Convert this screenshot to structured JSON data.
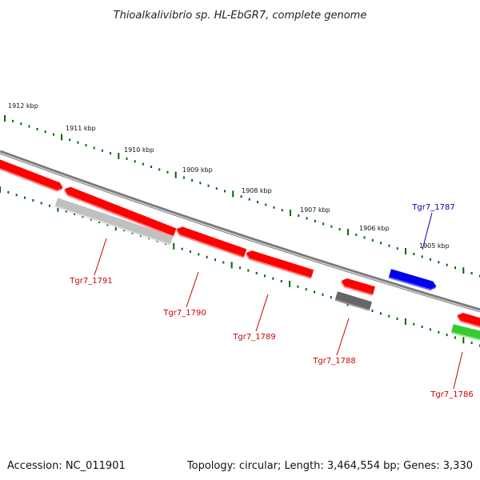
{
  "title": "Thioalkalivibrio sp. HL-EbGR7, complete genome",
  "footer": {
    "accession": "Accession: NC_011901",
    "summary": "Topology: circular; Length: 3,464,554 bp; Genes: 3,330"
  },
  "scale_labels": [
    "1912 kbp",
    "1911 kbp",
    "1910 kbp",
    "1909 kbp",
    "1908 kbp",
    "1907 kbp",
    "1906 kbp",
    "1905 kbp"
  ],
  "genes": [
    {
      "name": "Tgr7_1791",
      "color": "#cc0000"
    },
    {
      "name": "Tgr7_1790",
      "color": "#cc0000"
    },
    {
      "name": "Tgr7_1789",
      "color": "#cc0000"
    },
    {
      "name": "Tgr7_1788",
      "color": "#cc0000"
    },
    {
      "name": "Tgr7_1787",
      "color": "#0000aa"
    },
    {
      "name": "Tgr7_1786",
      "color": "#cc0000"
    }
  ],
  "colors": {
    "cds": "#ff0000",
    "cds_shadow": "#ff8080",
    "blue_gene": "#0000ee",
    "gray_light": "#c0c0c0",
    "gray_dark": "#666666",
    "green_gene": "#33cc33",
    "backbone": "#7a7a7a",
    "tick": "#006600"
  }
}
